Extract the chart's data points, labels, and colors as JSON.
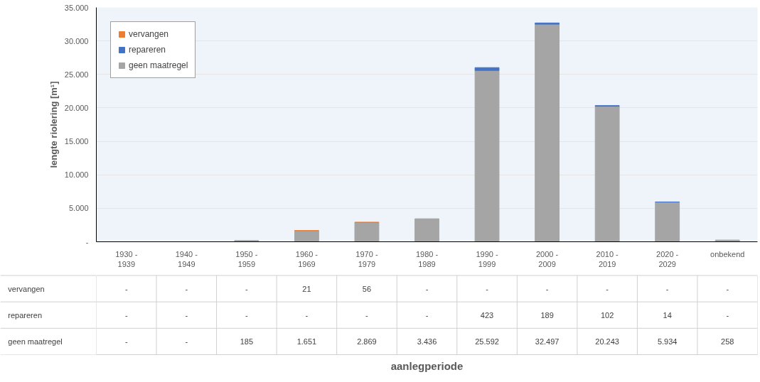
{
  "chart_data": {
    "type": "bar",
    "stacked": true,
    "categories": [
      "1930 -\n1939",
      "1940 -\n1949",
      "1950 -\n1959",
      "1960 -\n1969",
      "1970 -\n1979",
      "1980 -\n1989",
      "1990 -\n1999",
      "2000 -\n2009",
      "2010 -\n2019",
      "2020 -\n2029",
      "onbekend"
    ],
    "series": [
      {
        "name": "geen maatregel",
        "color": "#a5a5a5",
        "values": [
          null,
          null,
          185,
          1651,
          2869,
          3436,
          25592,
          32497,
          20243,
          5934,
          258
        ],
        "value_labels": [
          "-",
          "-",
          "185",
          "1.651",
          "2.869",
          "3.436",
          "25.592",
          "32.497",
          "20.243",
          "5.934",
          "258"
        ]
      },
      {
        "name": "repareren",
        "color": "#4472c4",
        "values": [
          null,
          null,
          null,
          null,
          null,
          null,
          423,
          189,
          102,
          14,
          null
        ],
        "value_labels": [
          "-",
          "-",
          "-",
          "-",
          "-",
          "-",
          "423",
          "189",
          "102",
          "14",
          "-"
        ]
      },
      {
        "name": "vervangen",
        "color": "#ed7d31",
        "values": [
          null,
          null,
          null,
          21,
          56,
          null,
          null,
          null,
          null,
          null,
          null
        ],
        "value_labels": [
          "-",
          "-",
          "-",
          "21",
          "56",
          "-",
          "-",
          "-",
          "-",
          "-",
          "-"
        ]
      }
    ],
    "annotations": [
      "aanlegperiode"
    ],
    "ylabel": "lengte riolering [m¹]",
    "ylim": [
      0,
      35000
    ],
    "yticks": [
      {
        "value": 0,
        "label": "-"
      },
      {
        "value": 5000,
        "label": "5.000"
      },
      {
        "value": 10000,
        "label": "10.000"
      },
      {
        "value": 15000,
        "label": "15.000"
      },
      {
        "value": 20000,
        "label": "20.000"
      },
      {
        "value": 25000,
        "label": "25.000"
      },
      {
        "value": 30000,
        "label": "30.000"
      },
      {
        "value": 35000,
        "label": "35.000"
      }
    ],
    "grid": "y",
    "legend": "top left"
  }
}
